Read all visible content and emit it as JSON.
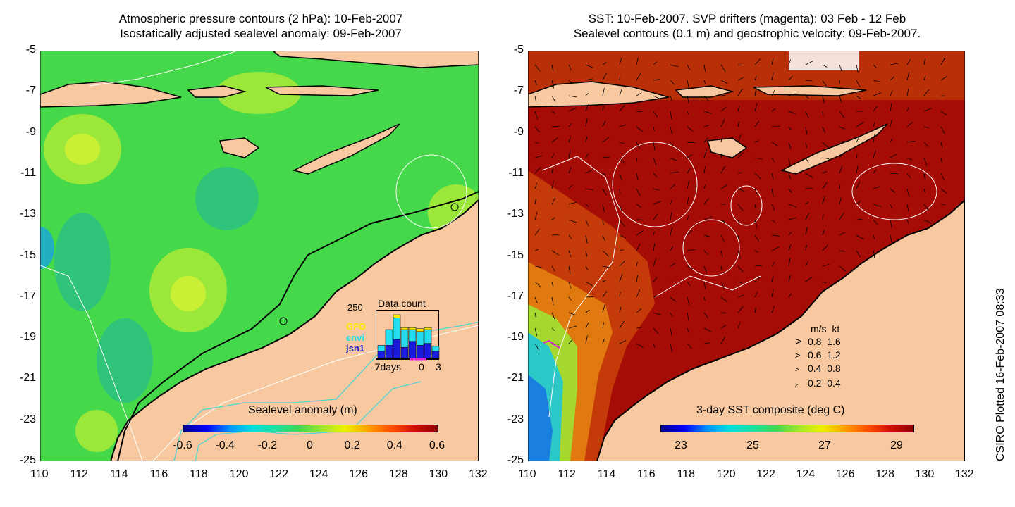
{
  "left_panel": {
    "title_line1": "Atmospheric pressure contours (2 hPa): 10-Feb-2007",
    "title_line2": "Isostatically adjusted sealevel anomaly: 09-Feb-2007",
    "colorbar_label": "Sealevel anomaly (m)",
    "colorbar_ticks": [
      "-0.6",
      "-0.4",
      "-0.2",
      "0",
      "0.2",
      "0.4",
      "0.6"
    ],
    "data_count": {
      "title": "Data count",
      "ymax_label": "250",
      "legend": [
        "GFO",
        "envi",
        "jsn1"
      ],
      "legend_colors": [
        "#ffee00",
        "#22ddee",
        "#1a1adc"
      ],
      "xlabel_left": "-7days",
      "xlabel_mid": "0",
      "xlabel_right": "3",
      "bars": [
        {
          "jsn1": 40,
          "envi": 30,
          "gfo": 0
        },
        {
          "jsn1": 70,
          "envi": 80,
          "gfo": 0
        },
        {
          "jsn1": 100,
          "envi": 110,
          "gfo": 15
        },
        {
          "jsn1": 60,
          "envi": 90,
          "gfo": 10
        },
        {
          "jsn1": 90,
          "envi": 60,
          "gfo": 10
        },
        {
          "jsn1": 70,
          "envi": 70,
          "gfo": 15
        },
        {
          "jsn1": 80,
          "envi": 70,
          "gfo": 10
        },
        {
          "jsn1": 40,
          "envi": 25,
          "gfo": 0
        }
      ]
    }
  },
  "right_panel": {
    "title_line1": "SST: 10-Feb-2007. SVP drifters (magenta): 03 Feb - 12 Feb",
    "title_line2": "Sealevel contours (0.1 m) and geostrophic velocity: 09-Feb-2007.",
    "colorbar_label": "3-day SST composite (deg C)",
    "colorbar_ticks": [
      "23",
      "25",
      "27",
      "29"
    ],
    "velocity_legend": {
      "header_ms": "m/s",
      "header_kt": "kt",
      "rows": [
        {
          "ms": "0.8",
          "kt": "1.6"
        },
        {
          "ms": "0.6",
          "kt": "1.2"
        },
        {
          "ms": "0.4",
          "kt": "0.8"
        },
        {
          "ms": "0.2",
          "kt": "0.4"
        }
      ]
    }
  },
  "axes": {
    "x_ticks": [
      "110",
      "112",
      "114",
      "116",
      "118",
      "120",
      "122",
      "124",
      "126",
      "128",
      "130",
      "132"
    ],
    "y_ticks": [
      "-5",
      "-7",
      "-9",
      "-11",
      "-13",
      "-15",
      "-17",
      "-19",
      "-21",
      "-23",
      "-25"
    ]
  },
  "credit": "CSIRO Plotted 16-Feb-2007 08:33",
  "colors": {
    "land": "#f8c9a0",
    "ocean_anomaly": "#44d84a",
    "sst_warm": "#a50c05",
    "coast_cyan": "#4fd3d3"
  }
}
